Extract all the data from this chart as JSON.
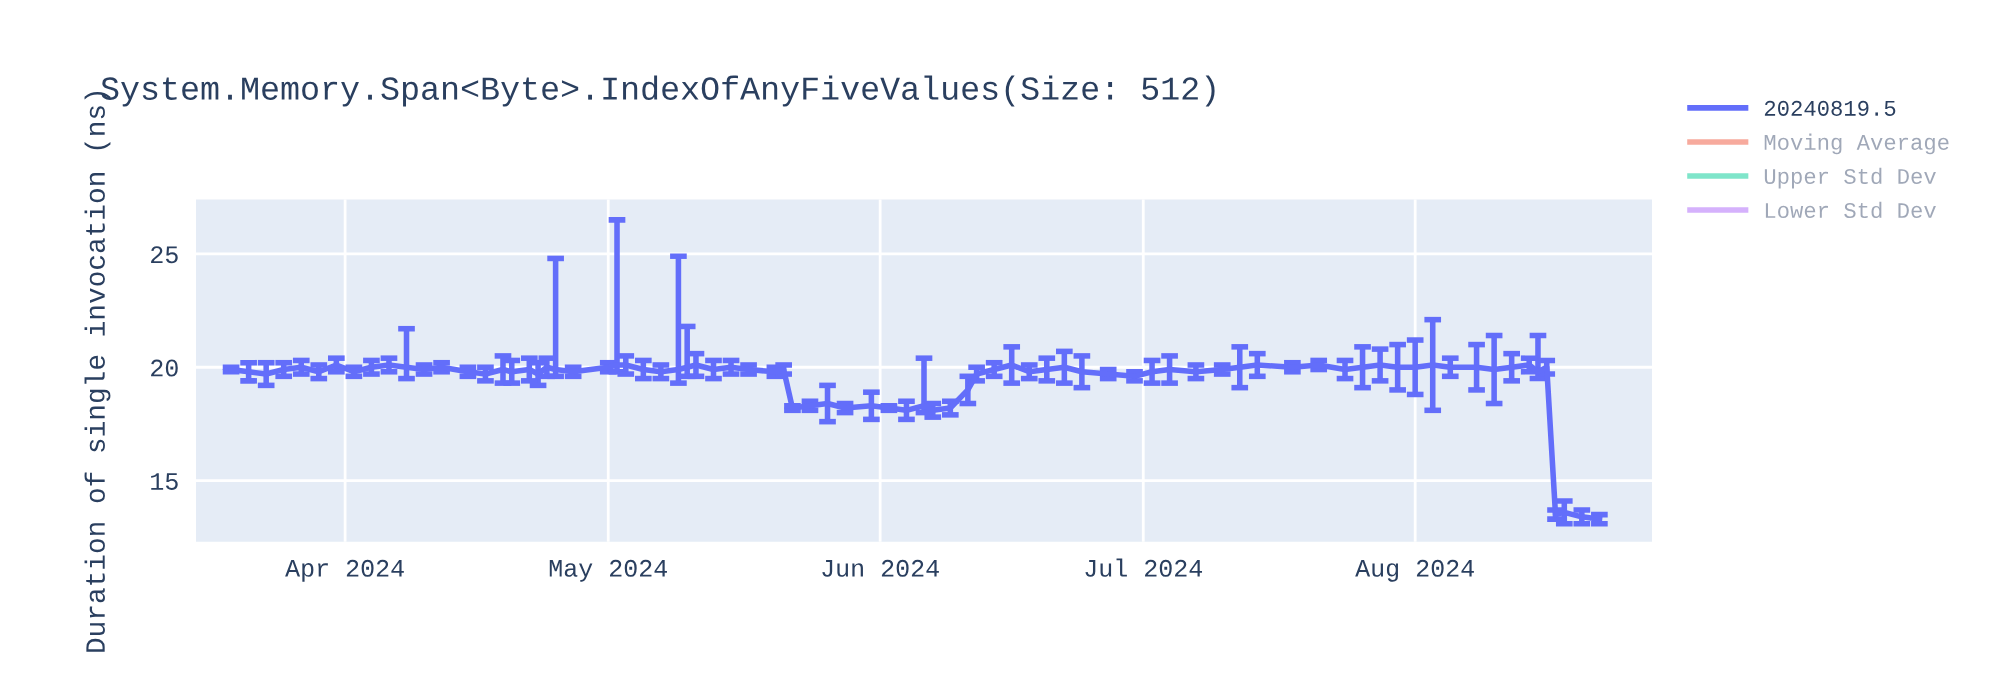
{
  "chart_data": {
    "type": "line",
    "title": "System.Memory.Span<Byte>.IndexOfAnyFiveValues(Size: 512)",
    "ylabel": "Duration of single invocation (ns)",
    "x": [
      "2024-03-19",
      "2024-03-21",
      "2024-03-23",
      "2024-03-25",
      "2024-03-27",
      "2024-03-29",
      "2024-03-31",
      "2024-04-02",
      "2024-04-04",
      "2024-04-06",
      "2024-04-08",
      "2024-04-10",
      "2024-04-12",
      "2024-04-15",
      "2024-04-17",
      "2024-04-19",
      "2024-04-20",
      "2024-04-22",
      "2024-04-23",
      "2024-04-24",
      "2024-04-25",
      "2024-04-27",
      "2024-05-01",
      "2024-05-02",
      "2024-05-03",
      "2024-05-05",
      "2024-05-07",
      "2024-05-09",
      "2024-05-10",
      "2024-05-11",
      "2024-05-13",
      "2024-05-15",
      "2024-05-17",
      "2024-05-20",
      "2024-05-21",
      "2024-05-22",
      "2024-05-24",
      "2024-05-26",
      "2024-05-28",
      "2024-05-31",
      "2024-06-02",
      "2024-06-04",
      "2024-06-06",
      "2024-06-07",
      "2024-06-09",
      "2024-06-11",
      "2024-06-12",
      "2024-06-14",
      "2024-06-16",
      "2024-06-18",
      "2024-06-20",
      "2024-06-22",
      "2024-06-24",
      "2024-06-27",
      "2024-06-30",
      "2024-07-02",
      "2024-07-04",
      "2024-07-07",
      "2024-07-10",
      "2024-07-12",
      "2024-07-14",
      "2024-07-18",
      "2024-07-21",
      "2024-07-24",
      "2024-07-26",
      "2024-07-28",
      "2024-07-30",
      "2024-08-01",
      "2024-08-03",
      "2024-08-05",
      "2024-08-08",
      "2024-08-10",
      "2024-08-12",
      "2024-08-14",
      "2024-08-15",
      "2024-08-16",
      "2024-08-17",
      "2024-08-18",
      "2024-08-20",
      "2024-08-22"
    ],
    "series": [
      {
        "name": "20240819.5",
        "color": "#636efa",
        "values": [
          19.9,
          19.8,
          19.7,
          19.9,
          20.0,
          19.8,
          20.1,
          19.8,
          20.0,
          20.1,
          20.0,
          19.9,
          20.0,
          19.8,
          19.7,
          19.9,
          19.8,
          19.9,
          19.7,
          20.0,
          19.9,
          19.8,
          20.0,
          20.1,
          20.1,
          19.9,
          19.8,
          19.9,
          20.0,
          20.1,
          19.9,
          20.0,
          19.9,
          19.8,
          19.9,
          18.2,
          18.3,
          18.4,
          18.2,
          18.3,
          18.2,
          18.1,
          18.3,
          18.1,
          18.2,
          19.0,
          19.7,
          19.9,
          20.1,
          19.8,
          19.9,
          20.0,
          19.8,
          19.7,
          19.6,
          19.8,
          19.9,
          19.8,
          19.9,
          20.0,
          20.1,
          20.0,
          20.1,
          19.9,
          20.0,
          20.1,
          20.0,
          20.0,
          20.1,
          20.0,
          20.0,
          19.9,
          20.0,
          20.1,
          19.8,
          20.0,
          13.5,
          13.6,
          13.4,
          13.3
        ],
        "errors": [
          0.1,
          0.4,
          0.5,
          0.3,
          0.3,
          0.3,
          0.3,
          0.2,
          0.3,
          0.3,
          [
            19.5,
            21.7
          ],
          0.2,
          0.2,
          0.2,
          0.3,
          0.6,
          0.5,
          0.5,
          0.5,
          0.4,
          [
            19.6,
            24.8
          ],
          0.2,
          0.2,
          [
            19.8,
            26.5
          ],
          0.4,
          0.4,
          0.3,
          [
            19.3,
            24.9
          ],
          [
            19.6,
            21.8
          ],
          0.5,
          0.4,
          0.3,
          0.2,
          0.2,
          0.2,
          0.1,
          0.2,
          0.8,
          0.2,
          0.6,
          0.1,
          0.4,
          [
            18.0,
            20.4
          ],
          0.3,
          0.3,
          0.6,
          0.3,
          0.3,
          0.8,
          0.3,
          0.5,
          0.7,
          0.7,
          0.2,
          0.2,
          0.5,
          0.6,
          0.3,
          0.2,
          0.9,
          0.5,
          0.2,
          0.2,
          0.4,
          0.9,
          0.7,
          1.0,
          1.2,
          2.0,
          0.4,
          1.0,
          1.5,
          0.6,
          0.3,
          [
            19.5,
            21.4
          ],
          0.3,
          0.2,
          0.5,
          0.3,
          0.2
        ]
      },
      {
        "name": "Moving Average",
        "color": "#ef553b",
        "values": [
          null,
          null,
          null,
          null,
          null,
          null,
          null,
          null,
          null,
          null,
          null,
          null,
          null,
          null,
          null,
          null,
          null,
          null,
          null,
          null,
          null,
          null,
          null,
          null,
          null,
          null,
          null,
          null,
          null,
          null,
          null,
          null,
          null,
          null,
          null,
          null,
          null,
          null,
          null,
          null,
          null,
          null,
          null,
          null,
          null,
          null,
          null,
          null,
          null,
          null,
          null,
          null,
          null,
          null,
          null,
          null,
          null,
          null,
          null,
          null,
          null,
          null,
          null,
          null,
          null,
          null,
          null,
          null,
          null,
          null,
          null,
          null,
          null,
          null,
          null,
          null,
          null,
          null,
          null,
          null
        ]
      },
      {
        "name": "Upper Std Dev",
        "color": "#00cc96",
        "values": [
          null,
          null,
          null,
          null,
          null,
          null,
          null,
          null,
          null,
          null,
          null,
          null,
          null,
          null,
          null,
          null,
          null,
          null,
          null,
          null,
          null,
          null,
          null,
          null,
          null,
          null,
          null,
          null,
          null,
          null,
          null,
          null,
          null,
          null,
          null,
          null,
          null,
          null,
          null,
          null,
          null,
          null,
          null,
          null,
          null,
          null,
          null,
          null,
          null,
          null,
          null,
          null,
          null,
          null,
          null,
          null,
          null,
          null,
          null,
          null,
          null,
          null,
          null,
          null,
          null,
          null,
          null,
          null,
          null,
          null,
          null,
          null,
          null,
          null,
          null,
          null,
          null,
          null,
          null,
          null
        ]
      },
      {
        "name": "Lower Std Dev",
        "color": "#ab63fa",
        "values": [
          null,
          null,
          null,
          null,
          null,
          null,
          null,
          null,
          null,
          null,
          null,
          null,
          null,
          null,
          null,
          null,
          null,
          null,
          null,
          null,
          null,
          null,
          null,
          null,
          null,
          null,
          null,
          null,
          null,
          null,
          null,
          null,
          null,
          null,
          null,
          null,
          null,
          null,
          null,
          null,
          null,
          null,
          null,
          null,
          null,
          null,
          null,
          null,
          null,
          null,
          null,
          null,
          null,
          null,
          null,
          null,
          null,
          null,
          null,
          null,
          null,
          null,
          null,
          null,
          null,
          null,
          null,
          null,
          null,
          null,
          null,
          null,
          null,
          null,
          null,
          null,
          null,
          null,
          null,
          null
        ]
      }
    ],
    "xlim": [
      "2024-03-15",
      "2024-08-28"
    ],
    "xticks": [
      {
        "value": "2024-04-01",
        "label": "Apr 2024"
      },
      {
        "value": "2024-05-01",
        "label": "May 2024"
      },
      {
        "value": "2024-06-01",
        "label": "Jun 2024"
      },
      {
        "value": "2024-07-01",
        "label": "Jul 2024"
      },
      {
        "value": "2024-08-01",
        "label": "Aug 2024"
      }
    ],
    "ylim": [
      12.3,
      27.4
    ],
    "yticks": [
      15,
      20,
      25
    ],
    "grid": true,
    "legend": "right",
    "marker": "none",
    "line_style": "solid"
  }
}
